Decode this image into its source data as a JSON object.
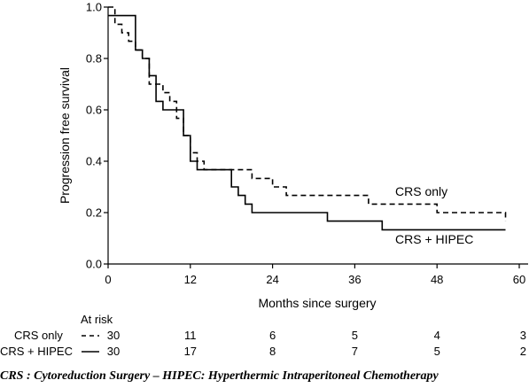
{
  "chart_data": {
    "type": "line",
    "step": true,
    "xlabel": "Months since surgery",
    "ylabel": "Progression free survival",
    "xlim": [
      0,
      60
    ],
    "ylim": [
      0,
      1.0
    ],
    "xticks": [
      0,
      12,
      24,
      36,
      48,
      60
    ],
    "xtick_labels": [
      "0",
      "12",
      "24",
      "36",
      "48",
      "60"
    ],
    "yticks": [
      0,
      0.2,
      0.4,
      0.6,
      0.8,
      1.0
    ],
    "ytick_labels": [
      "0.0",
      "0.2",
      "0.4",
      "0.6",
      "0.8",
      "1.0"
    ],
    "grid": false,
    "series": [
      {
        "name": "CRS only",
        "line_style": "dashed",
        "color": "#000000",
        "x": [
          0,
          1,
          2,
          3,
          4,
          5,
          6,
          7,
          8,
          9,
          10,
          11,
          12,
          13,
          14,
          17,
          21,
          24,
          26,
          38,
          48,
          58
        ],
        "y": [
          1.0,
          0.933,
          0.9,
          0.867,
          0.833,
          0.8,
          0.7,
          0.7,
          0.667,
          0.633,
          0.567,
          0.5,
          0.433,
          0.4,
          0.367,
          0.367,
          0.333,
          0.3,
          0.267,
          0.233,
          0.2,
          0.167
        ]
      },
      {
        "name": "CRS + HIPEC",
        "line_style": "solid",
        "color": "#000000",
        "x": [
          0,
          3,
          4,
          5,
          6,
          7,
          8,
          10,
          11,
          12,
          13,
          17,
          18,
          19,
          20,
          21,
          32,
          40,
          58
        ],
        "y": [
          0.967,
          0.967,
          0.833,
          0.8,
          0.733,
          0.633,
          0.6,
          0.6,
          0.5,
          0.4,
          0.367,
          0.367,
          0.3,
          0.267,
          0.233,
          0.2,
          0.167,
          0.133,
          0.133
        ]
      }
    ],
    "annotations": [
      {
        "text": "CRS only",
        "x": 44,
        "y": 0.27
      },
      {
        "text": "CRS + HIPEC",
        "x": 44,
        "y": 0.14
      }
    ],
    "at_risk": {
      "title": "At risk",
      "rows": [
        {
          "label": "CRS only",
          "line_style": "dashed",
          "values": [
            "30",
            "11",
            "6",
            "5",
            "4",
            "3"
          ]
        },
        {
          "label": "CRS + HIPEC",
          "line_style": "solid",
          "values": [
            "30",
            "17",
            "8",
            "7",
            "5",
            "2"
          ]
        }
      ]
    }
  },
  "caption": "CRS : Cytoreduction Surgery – HIPEC: Hyperthermic Intraperitoneal Chemotherapy"
}
